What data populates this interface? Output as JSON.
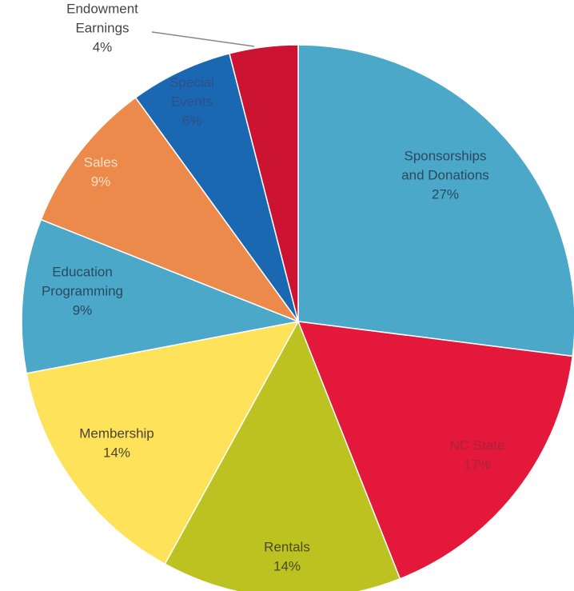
{
  "chart_data": {
    "type": "pie",
    "title": "",
    "start": "12 o'clock",
    "direction": "clockwise",
    "slices": [
      {
        "lines": [
          "Sponsorships",
          "and Donations",
          "27%"
        ],
        "value": 27,
        "color": "#4ba8c9",
        "label_color": "#2a4a5e"
      },
      {
        "lines": [
          "NC State",
          "17%"
        ],
        "value": 17,
        "color": "#e4183a",
        "label_color": "#a8243d"
      },
      {
        "lines": [
          "Rentals",
          "14%"
        ],
        "value": 14,
        "color": "#bcc21f",
        "label_color": "#4a4a1c"
      },
      {
        "lines": [
          "Membership",
          "14%"
        ],
        "value": 14,
        "color": "#fde25a",
        "label_color": "#4a4330"
      },
      {
        "lines": [
          "Education",
          "Programming",
          "9%"
        ],
        "value": 9,
        "color": "#4ba8c9",
        "label_color": "#2a4a5e"
      },
      {
        "lines": [
          "Sales",
          "9%"
        ],
        "value": 9,
        "color": "#eb8a4a",
        "label_color": "#fbe0cc"
      },
      {
        "lines": [
          "Special",
          "Events",
          "6%"
        ],
        "value": 6,
        "color": "#1a67b2",
        "label_color": "#2f4f8a"
      },
      {
        "lines": [
          "Endowment",
          "Earnings",
          "4%"
        ],
        "value": 4,
        "color": "#cc1432",
        "label_color": "#444444"
      }
    ]
  }
}
